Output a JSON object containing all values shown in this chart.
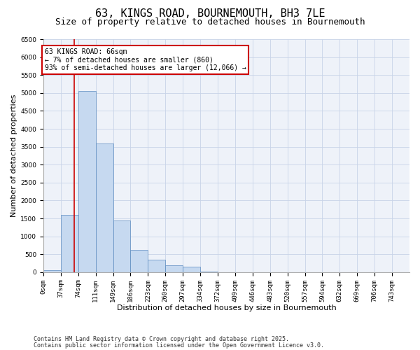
{
  "title_line1": "63, KINGS ROAD, BOURNEMOUTH, BH3 7LE",
  "title_line2": "Size of property relative to detached houses in Bournemouth",
  "xlabel": "Distribution of detached houses by size in Bournemouth",
  "ylabel": "Number of detached properties",
  "bar_labels": [
    "0sqm",
    "37sqm",
    "74sqm",
    "111sqm",
    "149sqm",
    "186sqm",
    "223sqm",
    "260sqm",
    "297sqm",
    "334sqm",
    "372sqm",
    "409sqm",
    "446sqm",
    "483sqm",
    "520sqm",
    "557sqm",
    "594sqm",
    "632sqm",
    "669sqm",
    "706sqm",
    "743sqm"
  ],
  "bar_values": [
    50,
    1600,
    5050,
    3600,
    1450,
    620,
    350,
    200,
    150,
    20,
    0,
    0,
    0,
    0,
    0,
    0,
    0,
    0,
    0,
    0,
    0
  ],
  "bar_color": "#c6d9f0",
  "bar_edge_color": "#5a8abf",
  "property_line_bin": 1.78,
  "annotation_title": "63 KINGS ROAD: 66sqm",
  "annotation_line1": "← 7% of detached houses are smaller (860)",
  "annotation_line2": "93% of semi-detached houses are larger (12,066) →",
  "annotation_box_color": "#ffffff",
  "annotation_box_edge": "#cc0000",
  "vline_color": "#cc0000",
  "ylim": [
    0,
    6500
  ],
  "yticks": [
    0,
    500,
    1000,
    1500,
    2000,
    2500,
    3000,
    3500,
    4000,
    4500,
    5000,
    5500,
    6000,
    6500
  ],
  "grid_color": "#c8d4e8",
  "bg_color": "#eef2f9",
  "footer_line1": "Contains HM Land Registry data © Crown copyright and database right 2025.",
  "footer_line2": "Contains public sector information licensed under the Open Government Licence v3.0.",
  "title_fontsize": 11,
  "subtitle_fontsize": 9,
  "axis_label_fontsize": 8,
  "tick_fontsize": 6.5,
  "footer_fontsize": 6,
  "annot_fontsize": 7,
  "ylabel_fontsize": 8
}
